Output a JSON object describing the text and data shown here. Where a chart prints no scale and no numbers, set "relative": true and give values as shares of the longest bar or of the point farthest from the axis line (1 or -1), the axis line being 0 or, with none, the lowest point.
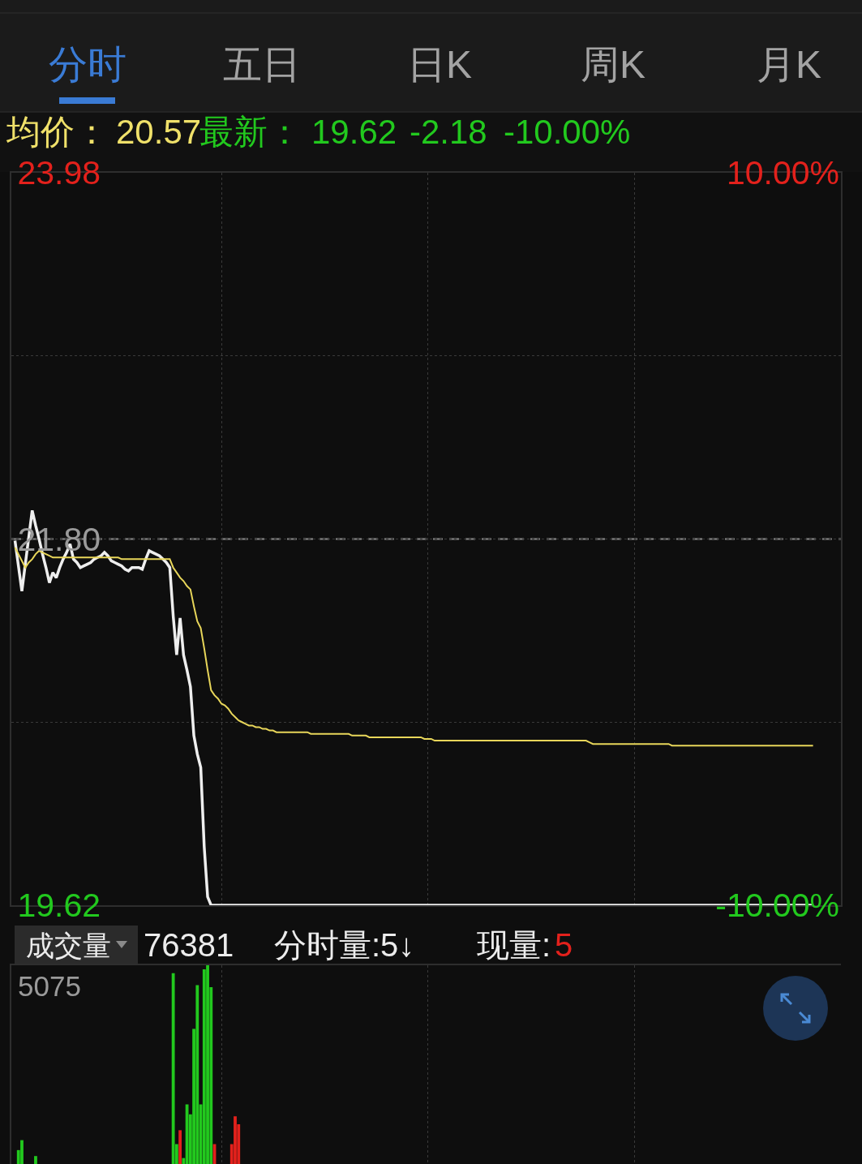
{
  "chart_data": [
    {
      "type": "line",
      "annotations": [
        "分时",
        "五日",
        "日K",
        "周K",
        "月K",
        "均价：",
        "20.57",
        "最新：",
        "19.62",
        "-2.18",
        "-10.00%"
      ],
      "categories": [
        null,
        null,
        null,
        null,
        null,
        null,
        null,
        null,
        null,
        null,
        null,
        null,
        null,
        null,
        null,
        null,
        null,
        null,
        null,
        null,
        null,
        null,
        null,
        null,
        null,
        null,
        null,
        null,
        null,
        null,
        null,
        null,
        null,
        null,
        null,
        null,
        null,
        null,
        null,
        null,
        null,
        null,
        null,
        null,
        null,
        null,
        null,
        null,
        null,
        null,
        null,
        null,
        null,
        null,
        null,
        null,
        null,
        null,
        null,
        null,
        null,
        null,
        null,
        null,
        null,
        null,
        null,
        null,
        null,
        null,
        null,
        null,
        null,
        null,
        null,
        null,
        null,
        null,
        null,
        null,
        null,
        null,
        null,
        null,
        null,
        null,
        null,
        null,
        null,
        null,
        null,
        null,
        null,
        null,
        null,
        null,
        null,
        null,
        null,
        null,
        null,
        null,
        null,
        null,
        null,
        null,
        null,
        null,
        null,
        null,
        null,
        null,
        null,
        null,
        null,
        null,
        null,
        null,
        null,
        null,
        null,
        null,
        null,
        null,
        null,
        null,
        null,
        null,
        null,
        null,
        null,
        null,
        null,
        null,
        null,
        null,
        null,
        null,
        null,
        null,
        null,
        null,
        null,
        null,
        null,
        null,
        null,
        null,
        null,
        null,
        null,
        null,
        null,
        null,
        null,
        null,
        null,
        null,
        null,
        null,
        null,
        null,
        null,
        null,
        null,
        null,
        null,
        null,
        null,
        null,
        null,
        null,
        null,
        null,
        null,
        null,
        null,
        null,
        null,
        null,
        null,
        null,
        null,
        null,
        null,
        null,
        null,
        null,
        null,
        null,
        null,
        null,
        null,
        null,
        null,
        null,
        null,
        null,
        null,
        null,
        null,
        null,
        null,
        null,
        null,
        null,
        null,
        null,
        null,
        null,
        null,
        null,
        null,
        null,
        null,
        null,
        null,
        null,
        null,
        null,
        null,
        null,
        null,
        null,
        null,
        null,
        null,
        null,
        null,
        null,
        null,
        null,
        null,
        null,
        null,
        null,
        null,
        null,
        null,
        null,
        null
      ],
      "series": [
        {
          "color": "#eeeeee",
          "values": [
            21.79,
            21.64,
            21.49,
            21.65,
            21.81,
            21.97,
            21.88,
            21.8,
            21.71,
            21.63,
            21.54,
            21.6,
            21.57,
            21.63,
            21.68,
            21.72,
            21.77,
            21.68,
            21.66,
            21.63,
            21.64,
            21.65,
            21.66,
            21.68,
            21.69,
            21.7,
            21.72,
            21.7,
            21.67,
            21.66,
            21.65,
            21.64,
            21.62,
            21.61,
            21.63,
            21.63,
            21.63,
            21.62,
            21.68,
            21.73,
            21.72,
            21.71,
            21.7,
            21.68,
            21.66,
            21.63,
            21.34,
            21.11,
            21.33,
            21.11,
            21.02,
            20.92,
            20.63,
            20.52,
            20.44,
            19.97,
            19.67,
            19.62,
            19.62,
            19.62,
            19.62,
            19.62,
            19.62,
            19.62,
            19.62,
            19.62,
            19.62,
            19.62,
            19.62,
            19.62,
            19.62,
            19.62,
            19.62,
            19.62,
            19.62,
            19.62,
            19.62,
            19.62,
            19.62,
            19.62,
            19.62,
            19.62,
            19.62,
            19.62,
            19.62,
            19.62,
            19.62,
            19.62,
            19.62,
            19.62,
            19.62,
            19.62,
            19.62,
            19.62,
            19.62,
            19.62,
            19.62,
            19.62,
            19.62,
            19.62,
            19.62,
            19.62,
            19.62,
            19.62,
            19.62,
            19.62,
            19.62,
            19.62,
            19.62,
            19.62,
            19.62,
            19.62,
            19.62,
            19.62,
            19.62,
            19.62,
            19.62,
            19.62,
            19.62,
            19.62,
            19.62,
            19.62,
            19.62,
            19.62,
            19.62,
            19.62,
            19.62,
            19.62,
            19.62,
            19.62,
            19.62,
            19.62,
            19.62,
            19.62,
            19.62,
            19.62,
            19.62,
            19.62,
            19.62,
            19.62,
            19.62,
            19.62,
            19.62,
            19.62,
            19.62,
            19.62,
            19.62,
            19.62,
            19.62,
            19.62,
            19.62,
            19.62,
            19.62,
            19.62,
            19.62,
            19.62,
            19.62,
            19.62,
            19.62,
            19.62,
            19.62,
            19.62,
            19.62,
            19.62,
            19.62,
            19.62,
            19.62,
            19.62,
            19.62,
            19.62,
            19.62,
            19.62,
            19.62,
            19.62,
            19.62,
            19.62,
            19.62,
            19.62,
            19.62,
            19.62,
            19.62,
            19.62,
            19.62,
            19.62,
            19.62,
            19.62,
            19.62,
            19.62,
            19.62,
            19.62,
            19.62,
            19.62,
            19.62,
            19.62,
            19.62,
            19.62,
            19.62,
            19.62,
            19.62,
            19.62,
            19.62,
            19.62,
            19.62,
            19.62,
            19.62,
            19.62,
            19.62,
            19.62,
            19.62,
            19.62,
            19.62,
            19.62,
            19.62,
            19.62,
            19.62,
            19.62,
            19.62,
            19.62,
            19.62,
            19.62,
            19.62,
            19.62,
            19.62,
            19.62,
            19.62,
            19.62,
            19.62,
            19.62,
            19.62,
            19.62,
            19.62,
            19.62,
            19.62,
            null,
            null,
            null,
            null,
            null,
            null,
            null,
            null
          ]
        },
        {
          "color": "#e8d65a",
          "values": [
            21.75,
            21.71,
            21.67,
            21.63,
            21.66,
            21.68,
            21.71,
            21.73,
            21.72,
            21.71,
            21.7,
            21.69,
            21.69,
            21.69,
            21.69,
            21.69,
            21.69,
            21.69,
            21.69,
            21.69,
            21.69,
            21.69,
            21.69,
            21.69,
            21.69,
            21.69,
            21.69,
            21.69,
            21.69,
            21.69,
            21.69,
            21.68,
            21.68,
            21.68,
            21.68,
            21.68,
            21.68,
            21.68,
            21.68,
            21.68,
            21.68,
            21.68,
            21.68,
            21.68,
            21.68,
            21.68,
            21.63,
            21.6,
            21.57,
            21.55,
            21.52,
            21.5,
            21.4,
            21.31,
            21.27,
            21.15,
            21.02,
            20.9,
            20.87,
            20.85,
            20.82,
            20.81,
            20.79,
            20.76,
            20.74,
            20.72,
            20.71,
            20.7,
            20.69,
            20.69,
            20.68,
            20.68,
            20.67,
            20.67,
            20.66,
            20.66,
            20.65,
            20.65,
            20.65,
            20.65,
            20.65,
            20.65,
            20.65,
            20.65,
            20.65,
            20.65,
            20.64,
            20.64,
            20.64,
            20.64,
            20.64,
            20.64,
            20.64,
            20.64,
            20.64,
            20.64,
            20.64,
            20.64,
            20.63,
            20.63,
            20.63,
            20.63,
            20.63,
            20.62,
            20.62,
            20.62,
            20.62,
            20.62,
            20.62,
            20.62,
            20.62,
            20.62,
            20.62,
            20.62,
            20.62,
            20.62,
            20.62,
            20.62,
            20.62,
            20.61,
            20.61,
            20.61,
            20.6,
            20.6,
            20.6,
            20.6,
            20.6,
            20.6,
            20.6,
            20.6,
            20.6,
            20.6,
            20.6,
            20.6,
            20.6,
            20.6,
            20.6,
            20.6,
            20.6,
            20.6,
            20.6,
            20.6,
            20.6,
            20.6,
            20.6,
            20.6,
            20.6,
            20.6,
            20.6,
            20.6,
            20.6,
            20.6,
            20.6,
            20.6,
            20.6,
            20.6,
            20.6,
            20.6,
            20.6,
            20.6,
            20.6,
            20.6,
            20.6,
            20.6,
            20.6,
            20.6,
            20.6,
            20.59,
            20.58,
            20.58,
            20.58,
            20.58,
            20.58,
            20.58,
            20.58,
            20.58,
            20.58,
            20.58,
            20.58,
            20.58,
            20.58,
            20.58,
            20.58,
            20.58,
            20.58,
            20.58,
            20.58,
            20.58,
            20.58,
            20.58,
            20.58,
            20.57,
            20.57,
            20.57,
            20.57,
            20.57,
            20.57,
            20.57,
            20.57,
            20.57,
            20.57,
            20.57,
            20.57,
            20.57,
            20.57,
            20.57,
            20.57,
            20.57,
            20.57,
            20.57,
            20.57,
            20.57,
            20.57,
            20.57,
            20.57,
            20.57,
            20.57,
            20.57,
            20.57,
            20.57,
            20.57,
            20.57,
            20.57,
            20.57,
            20.57,
            20.57,
            20.57,
            20.57,
            20.57,
            20.57,
            20.57,
            20.57,
            20.57,
            null,
            null,
            null,
            null,
            null,
            null,
            null,
            null
          ]
        }
      ],
      "ylim": [
        19.62,
        23.98
      ],
      "yticks": [
        23.98,
        {
          "value": 22.89,
          "label": null
        },
        {
          "value": 21.8,
          "label": "21.80"
        },
        {
          "value": 20.71,
          "label": null
        },
        19.62
      ],
      "y2lim": [
        -10,
        10
      ],
      "y2ticks": [
        {
          "value": 10,
          "label": "10.00%"
        },
        {
          "value": -10,
          "label": "-10.00%"
        }
      ],
      "ref_lines": [
        {
          "axis": "y",
          "value": 21.8,
          "line_style": "dashed",
          "color": "#8c8c8c"
        }
      ],
      "grid": true
    },
    {
      "type": "bar",
      "annotations": [
        "成交量",
        "76381",
        "分时量:5↓",
        "现量:",
        "5",
        "5075"
      ],
      "categories": [
        null,
        null,
        null,
        null,
        null,
        null,
        null,
        null,
        null,
        null,
        null,
        null,
        null,
        null,
        null,
        null,
        null,
        null,
        null,
        null,
        null,
        null,
        null,
        null,
        null,
        null,
        null,
        null,
        null,
        null,
        null,
        null,
        null,
        null,
        null,
        null,
        null,
        null,
        null,
        null,
        null,
        null,
        null,
        null,
        null,
        null,
        null,
        null,
        null,
        null,
        null,
        null,
        null,
        null,
        null,
        null,
        null,
        null,
        null,
        null,
        null,
        null,
        null,
        null,
        null,
        null,
        null,
        null,
        null,
        null,
        null,
        null,
        null,
        null,
        null,
        null,
        null,
        null,
        null,
        null,
        null,
        null,
        null,
        null,
        null,
        null,
        null,
        null,
        null,
        null,
        null,
        null,
        null,
        null,
        null,
        null,
        null,
        null,
        null,
        null,
        null,
        null,
        null,
        null,
        null,
        null,
        null,
        null,
        null,
        null,
        null,
        null,
        null,
        null,
        null,
        null,
        null,
        null,
        null,
        null,
        null,
        null,
        null,
        null,
        null,
        null,
        null,
        null,
        null,
        null,
        null,
        null,
        null,
        null,
        null,
        null,
        null,
        null,
        null,
        null,
        null,
        null,
        null,
        null,
        null,
        null,
        null,
        null,
        null,
        null,
        null,
        null,
        null,
        null,
        null,
        null,
        null,
        null,
        null,
        null,
        null,
        null,
        null,
        null,
        null,
        null,
        null,
        null,
        null,
        null,
        null,
        null,
        null,
        null,
        null,
        null,
        null,
        null,
        null,
        null,
        null,
        null,
        null,
        null,
        null,
        null,
        null,
        null,
        null,
        null,
        null,
        null,
        null,
        null,
        null,
        null,
        null,
        null,
        null,
        null,
        null,
        null,
        null,
        null,
        null,
        null,
        null,
        null,
        null,
        null,
        null,
        null,
        null,
        null,
        null,
        null,
        null,
        null,
        null,
        null,
        null,
        null,
        null,
        null,
        null,
        null,
        null,
        null,
        null,
        null,
        null,
        null,
        null,
        null,
        null,
        null,
        null,
        null,
        null,
        null,
        null
      ],
      "values": [
        null,
        0.07,
        0.12,
        null,
        null,
        null,
        0.04,
        null,
        null,
        null,
        null,
        null,
        null,
        null,
        null,
        null,
        null,
        null,
        null,
        null,
        null,
        null,
        null,
        null,
        null,
        null,
        null,
        null,
        null,
        null,
        null,
        null,
        null,
        null,
        null,
        null,
        null,
        null,
        null,
        null,
        null,
        null,
        null,
        null,
        null,
        null,
        0.96,
        0.1,
        0.17,
        0.03,
        0.3,
        0.25,
        0.68,
        0.9,
        0.3,
        0.98,
        1,
        0.89,
        0.1,
        null,
        null,
        null,
        null,
        0.1,
        0.24,
        0.2,
        null,
        null,
        null,
        null,
        null,
        null,
        null,
        null,
        null,
        null,
        null,
        null,
        null,
        null,
        null,
        null,
        null,
        null,
        null,
        null,
        null,
        null,
        null,
        null,
        null,
        null,
        null,
        null,
        null,
        null,
        null,
        null,
        null,
        null,
        null,
        null,
        null,
        null,
        null,
        null,
        null,
        null,
        null,
        null,
        null,
        null,
        null,
        null,
        null,
        null,
        null,
        null,
        null,
        null,
        null,
        null,
        null,
        null,
        null,
        null,
        null,
        null,
        null,
        null,
        null,
        null,
        null,
        null,
        null,
        null,
        null,
        null,
        null,
        null,
        null,
        null,
        null,
        null,
        null,
        null,
        null,
        null,
        null,
        null,
        null,
        null,
        null,
        null,
        null,
        null,
        null,
        null,
        null,
        null,
        null,
        null,
        null,
        null,
        null,
        null,
        null,
        null,
        null,
        null,
        null,
        null,
        null,
        null,
        null,
        null,
        null,
        null,
        null,
        null,
        null,
        null,
        null,
        null,
        null,
        null,
        null,
        null,
        null,
        null,
        null,
        null,
        null,
        null,
        null,
        null,
        null,
        null,
        null,
        null,
        null,
        null,
        null,
        null,
        null,
        null,
        null,
        null,
        null,
        null,
        null,
        null,
        null,
        null,
        null,
        null,
        null,
        null,
        null,
        null,
        null,
        null,
        null,
        null,
        null,
        null,
        null,
        null,
        null,
        null,
        null,
        null,
        null,
        null,
        null,
        null,
        null,
        null,
        null,
        null,
        null
      ],
      "colors": [
        null,
        "#22c91e",
        "#22c91e",
        null,
        null,
        null,
        "#22c91e",
        null,
        null,
        null,
        null,
        null,
        null,
        null,
        null,
        null,
        null,
        null,
        null,
        null,
        null,
        null,
        null,
        null,
        null,
        null,
        null,
        null,
        null,
        null,
        null,
        null,
        null,
        null,
        null,
        null,
        null,
        null,
        null,
        null,
        null,
        null,
        null,
        null,
        null,
        null,
        "#22c91e",
        "#22c91e",
        "#e3211c",
        "#22c91e",
        "#22c91e",
        "#22c91e",
        "#22c91e",
        "#22c91e",
        "#22c91e",
        "#22c91e",
        "#22c91e",
        "#22c91e",
        "#e3211c",
        null,
        null,
        null,
        null,
        "#e3211c",
        "#e3211c",
        "#e3211c",
        null,
        null,
        null,
        null,
        null,
        null,
        null,
        null,
        null,
        null,
        null,
        null,
        null,
        null,
        null,
        null,
        null,
        null,
        null,
        null,
        null,
        null,
        null,
        null,
        null,
        null,
        null,
        null,
        null,
        null,
        null,
        null,
        null,
        null,
        null,
        null,
        null,
        null,
        null,
        null,
        null,
        null,
        null,
        null,
        null,
        null,
        null,
        null,
        null,
        null,
        null,
        null,
        null,
        null,
        null,
        null,
        null,
        null,
        null,
        null,
        null,
        null,
        null,
        null,
        null,
        null,
        null,
        null,
        null,
        null,
        null,
        null,
        null,
        null,
        null,
        null,
        null,
        null,
        null,
        null,
        null,
        null,
        null,
        null,
        null,
        null,
        null,
        null,
        null,
        null,
        null,
        null,
        null,
        null,
        null,
        null,
        null,
        null,
        null,
        null,
        null,
        null,
        null,
        null,
        null,
        null,
        null,
        null,
        null,
        null,
        null,
        null,
        null,
        null,
        null,
        null,
        null,
        null,
        null,
        null,
        null,
        null,
        null,
        null,
        null,
        null,
        null,
        null,
        null,
        null,
        null,
        null,
        null,
        null,
        null,
        null,
        null,
        null,
        null,
        null,
        null,
        null,
        null,
        null,
        null,
        null,
        null,
        null,
        null,
        null,
        null,
        null,
        null,
        null,
        null,
        null,
        null,
        null,
        null,
        null,
        null,
        null,
        null,
        null,
        null,
        null,
        null,
        null,
        null,
        null,
        null,
        null,
        null,
        null,
        null
      ],
      "relative": true,
      "grid": "x"
    }
  ]
}
